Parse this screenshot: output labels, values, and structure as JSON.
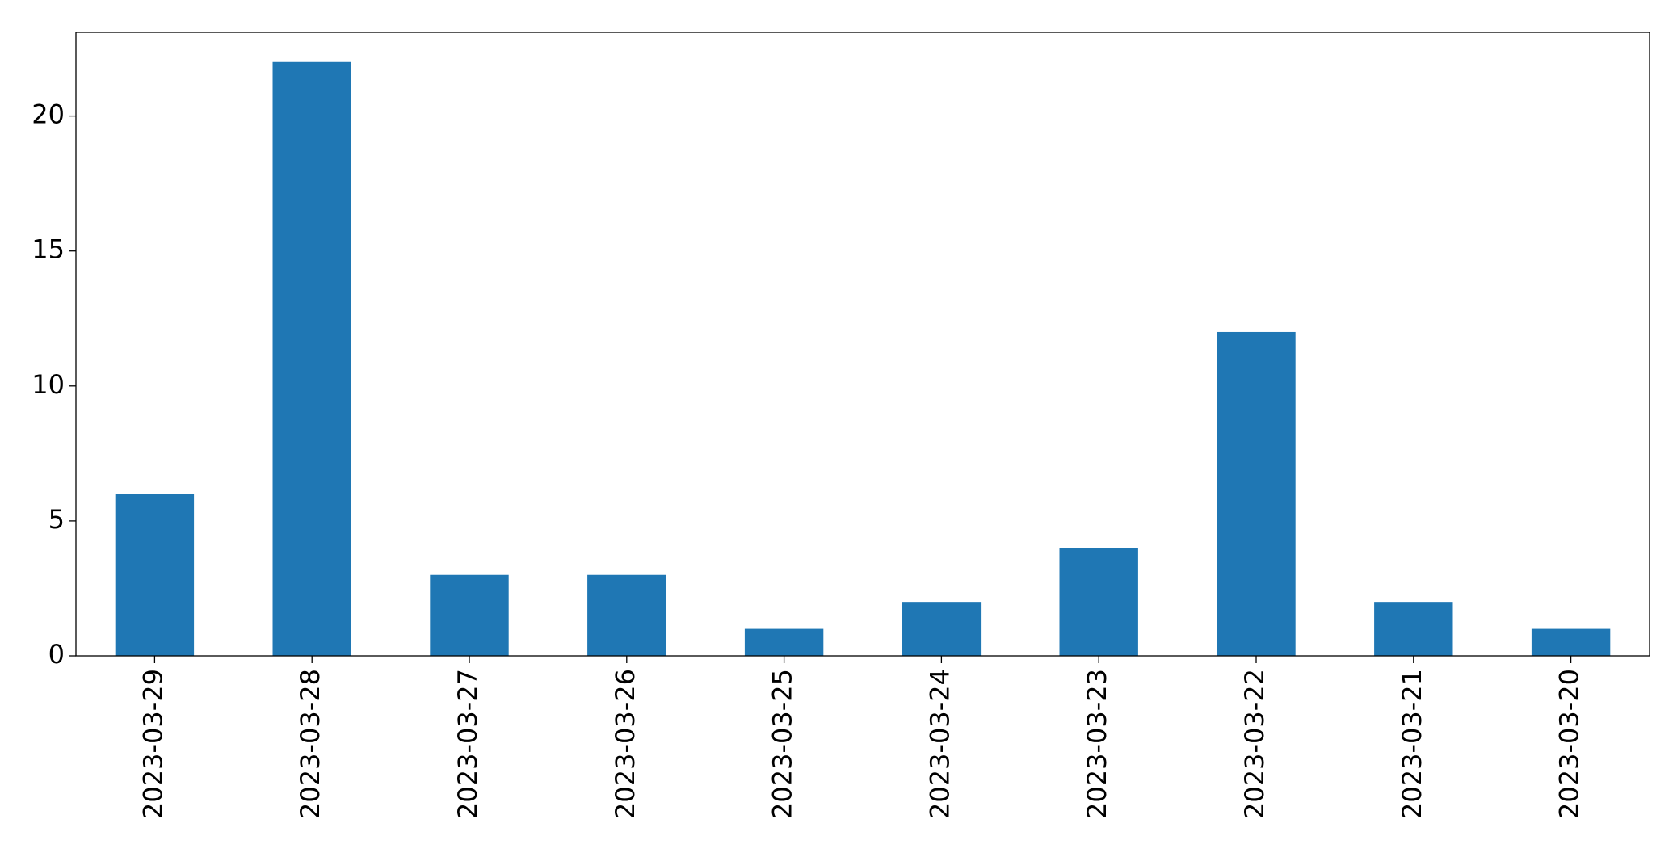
{
  "chart_data": {
    "type": "bar",
    "categories": [
      "2023-03-29",
      "2023-03-28",
      "2023-03-27",
      "2023-03-26",
      "2023-03-25",
      "2023-03-24",
      "2023-03-23",
      "2023-03-22",
      "2023-03-21",
      "2023-03-20"
    ],
    "values": [
      6,
      22,
      3,
      3,
      1,
      2,
      4,
      12,
      2,
      1
    ],
    "color": "#1f77b4",
    "ylim": [
      0,
      23.1
    ],
    "yticks": [
      0,
      5,
      10,
      15,
      20
    ],
    "grid": false
  }
}
